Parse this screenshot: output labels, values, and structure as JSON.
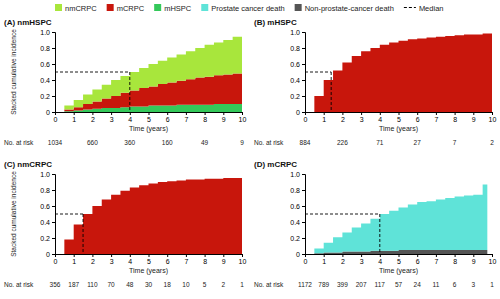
{
  "chart_data": [
    {
      "type": "area",
      "title": "(A) nmHSPC",
      "x_label": "Time (years)",
      "y_label": "Stacked cumulative incidence",
      "stacked": true,
      "legend": "top",
      "x": [
        0,
        0.5,
        1,
        1.5,
        2,
        2.5,
        3,
        3.5,
        4,
        4.5,
        5,
        5.5,
        6,
        6.5,
        7,
        7.5,
        8,
        8.5,
        9,
        9.5,
        10
      ],
      "series": [
        {
          "name": "nmCRPC",
          "color": "#a8e63c",
          "values": [
            0,
            0.05,
            0.09,
            0.12,
            0.15,
            0.17,
            0.2,
            0.21,
            0.23,
            0.25,
            0.28,
            0.29,
            0.31,
            0.33,
            0.35,
            0.37,
            0.4,
            0.41,
            0.43,
            0.46,
            0.48
          ]
        },
        {
          "name": "mCRPC",
          "color": "#c8160c",
          "values": [
            0,
            0.02,
            0.04,
            0.07,
            0.09,
            0.12,
            0.15,
            0.18,
            0.2,
            0.23,
            0.24,
            0.27,
            0.29,
            0.3,
            0.32,
            0.34,
            0.35,
            0.36,
            0.37,
            0.38,
            0.39
          ]
        },
        {
          "name": "mHSPC",
          "color": "#34c85a",
          "values": [
            0,
            0.01,
            0.02,
            0.03,
            0.04,
            0.05,
            0.05,
            0.06,
            0.07,
            0.07,
            0.08,
            0.08,
            0.08,
            0.09,
            0.09,
            0.09,
            0.09,
            0.1,
            0.1,
            0.1,
            0.1
          ]
        }
      ],
      "median": {
        "label": "Median",
        "x": 4,
        "y": 0.5
      },
      "xlim": [
        0,
        10
      ],
      "xticks": [
        0,
        1,
        2,
        3,
        4,
        5,
        6,
        7,
        8,
        9,
        10
      ],
      "ylim": [
        0,
        1
      ],
      "yticks": [
        0,
        0.2,
        0.4,
        0.6,
        0.8,
        {
          "value": 1,
          "label": "1.0"
        }
      ],
      "at_risk": {
        "label": "No. at risk",
        "x": [
          0,
          2,
          4,
          6,
          8,
          10
        ],
        "values": [
          1034,
          660,
          360,
          160,
          49,
          9
        ]
      }
    },
    {
      "type": "area",
      "title": "(B) mHSPC",
      "x_label": "Time (years)",
      "stacked": true,
      "x": [
        0,
        0.5,
        1,
        1.5,
        2,
        2.5,
        3,
        3.5,
        4,
        4.5,
        5,
        5.5,
        6,
        6.5,
        7,
        7.5,
        8,
        8.5,
        9,
        9.5,
        10
      ],
      "series": [
        {
          "name": "mCRPC",
          "color": "#c8160c",
          "values": [
            0,
            0.2,
            0.4,
            0.52,
            0.62,
            0.7,
            0.76,
            0.8,
            0.84,
            0.87,
            0.89,
            0.91,
            0.92,
            0.93,
            0.94,
            0.95,
            0.96,
            0.97,
            0.97,
            0.98,
            0.99
          ]
        }
      ],
      "median": {
        "x": 1.4,
        "y": 0.5
      },
      "xlim": [
        0,
        10
      ],
      "xticks": [
        0,
        1,
        2,
        3,
        4,
        5,
        6,
        7,
        8,
        9,
        10
      ],
      "ylim": [
        0,
        1
      ],
      "yticks": [
        0,
        0.2,
        0.4,
        0.6,
        0.8,
        {
          "value": 1,
          "label": "1.0"
        }
      ],
      "at_risk": {
        "label": "No. at risk",
        "x": [
          0,
          2,
          4,
          6,
          8,
          10
        ],
        "values": [
          884,
          226,
          71,
          27,
          7,
          2
        ]
      }
    },
    {
      "type": "area",
      "title": "(C) nmCRPC",
      "x_label": "Time (years)",
      "y_label": "Stacked cumulative incidence",
      "stacked": true,
      "x": [
        0,
        0.5,
        1,
        1.5,
        2,
        2.5,
        3,
        3.5,
        4,
        4.5,
        5,
        5.5,
        6,
        6.5,
        7,
        7.5,
        8,
        8.5,
        9,
        9.5,
        10
      ],
      "series": [
        {
          "name": "mCRPC",
          "color": "#c8160c",
          "values": [
            0,
            0.18,
            0.37,
            0.5,
            0.6,
            0.68,
            0.74,
            0.79,
            0.83,
            0.86,
            0.88,
            0.9,
            0.91,
            0.92,
            0.93,
            0.93,
            0.94,
            0.94,
            0.95,
            0.95,
            0.95
          ]
        }
      ],
      "median": {
        "x": 1.5,
        "y": 0.5
      },
      "xlim": [
        0,
        10
      ],
      "xticks": [
        0,
        1,
        2,
        3,
        4,
        5,
        6,
        7,
        8,
        9,
        10
      ],
      "ylim": [
        0,
        1
      ],
      "yticks": [
        0,
        0.2,
        0.4,
        0.6,
        0.8,
        {
          "value": 1,
          "label": "1.0"
        }
      ],
      "at_risk": {
        "label": "No. at risk",
        "x": [
          0,
          1,
          2,
          3,
          4,
          5,
          6,
          7,
          8,
          9,
          10
        ],
        "values": [
          356,
          187,
          110,
          70,
          48,
          30,
          18,
          10,
          5,
          2,
          1
        ]
      }
    },
    {
      "type": "area",
      "title": "(D) mCRPC",
      "x_label": "Time (years)",
      "stacked": true,
      "x": [
        0,
        0.5,
        1,
        1.5,
        2,
        2.5,
        3,
        3.5,
        4,
        4.5,
        5,
        5.5,
        6,
        6.5,
        7,
        7.5,
        8,
        8.5,
        9,
        9.5,
        9.75
      ],
      "series": [
        {
          "name": "Prostate cancer death",
          "color": "#5fe3d8",
          "values": [
            0,
            0.06,
            0.12,
            0.19,
            0.24,
            0.3,
            0.35,
            0.4,
            0.46,
            0.5,
            0.53,
            0.57,
            0.6,
            0.61,
            0.63,
            0.65,
            0.67,
            0.68,
            0.69,
            0.82,
            0.82
          ]
        },
        {
          "name": "Non-prostate-cancer death",
          "color": "#555555",
          "values": [
            0,
            0.01,
            0.02,
            0.02,
            0.03,
            0.03,
            0.03,
            0.04,
            0.04,
            0.04,
            0.05,
            0.05,
            0.05,
            0.05,
            0.05,
            0.05,
            0.05,
            0.05,
            0.05,
            0.05,
            0.05
          ]
        }
      ],
      "median": {
        "x": 4,
        "y": 0.5
      },
      "xlim": [
        0,
        10
      ],
      "xticks": [
        0,
        1,
        2,
        3,
        4,
        5,
        6,
        7,
        8,
        9,
        10
      ],
      "ylim": [
        0,
        1
      ],
      "yticks": [
        0,
        0.2,
        0.4,
        0.6,
        0.8,
        {
          "value": 1,
          "label": "1.0"
        }
      ],
      "at_risk": {
        "label": "No. at risk",
        "x": [
          0,
          1,
          2,
          3,
          4,
          5,
          6,
          7,
          8,
          9,
          10
        ],
        "values": [
          1172,
          789,
          399,
          207,
          117,
          57,
          24,
          11,
          6,
          3,
          1
        ]
      }
    }
  ]
}
